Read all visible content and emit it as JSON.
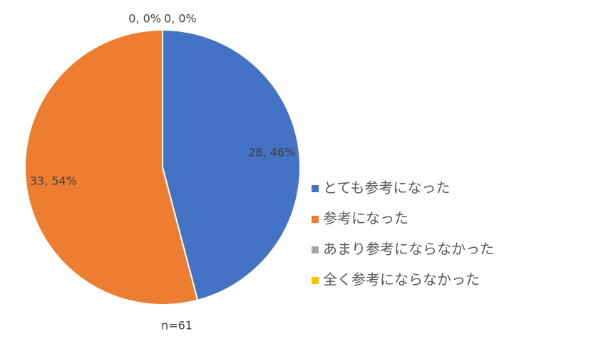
{
  "chart_data": {
    "type": "pie",
    "categories": [
      "とても参考になった",
      "参考になった",
      "あまり参考にならなかった",
      "全く参考にならなかった"
    ],
    "values": [
      28,
      33,
      0,
      0
    ],
    "value_labels": [
      "28, 46%",
      "33, 54%",
      "0, 0%",
      "0, 0%"
    ],
    "colors": [
      "#4472c4",
      "#ed7d31",
      "#a5a5a5",
      "#ffc000"
    ],
    "annotation": "n=61",
    "legend": "right"
  }
}
